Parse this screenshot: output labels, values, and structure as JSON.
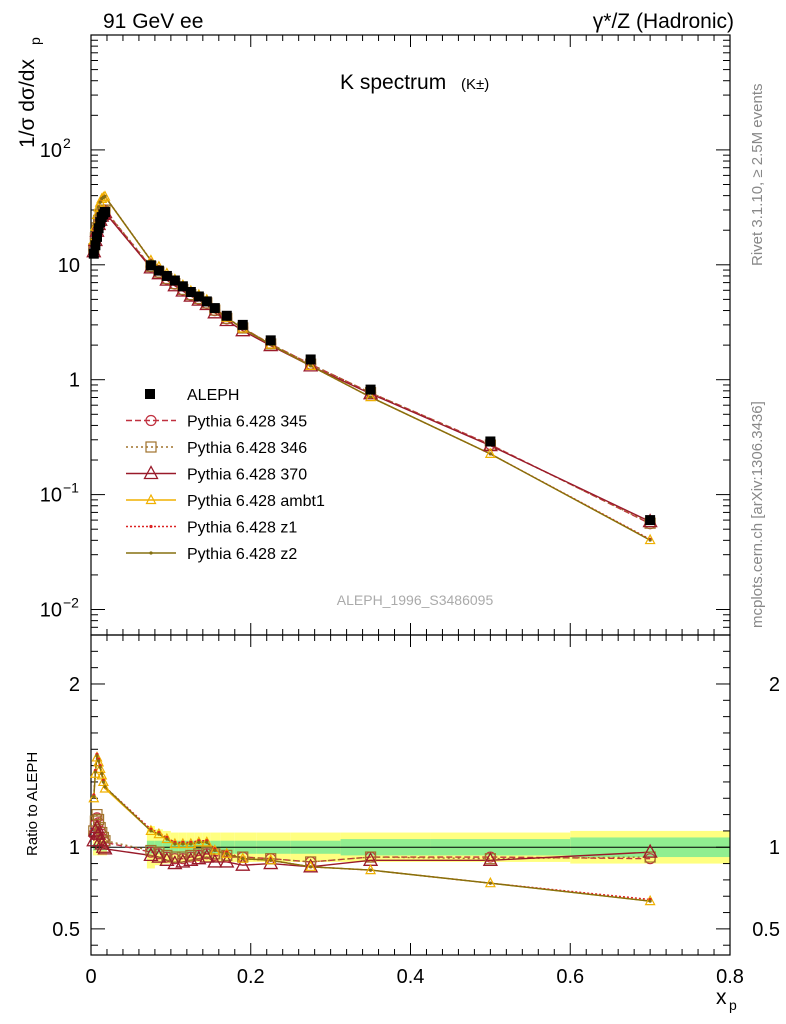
{
  "header": {
    "left": "91 GeV ee",
    "right": "γ*/Z (Hadronic)"
  },
  "side_labels": {
    "top": "Rivet 3.1.10, ≥ 2.5M events",
    "bottom": "mcplots.cern.ch [arXiv:1306.3436]"
  },
  "chart_data": {
    "type": "line",
    "title": "K spectrum",
    "title_sub": "(K±)",
    "watermark": "ALEPH_1996_S3486095",
    "xlabel": "x",
    "xlabel_sub": "p",
    "ylabel": "1/σ dσ/dx",
    "ylabel_sub": "p",
    "ratio_ylabel": "Ratio to ALEPH",
    "xlim": [
      0,
      0.8
    ],
    "ylim": [
      0.006,
      1000
    ],
    "yscale": "log",
    "ratio_ylim": [
      0.34,
      2.3
    ],
    "x_ticks": [
      "0",
      "0.2",
      "0.4",
      "0.6",
      "0.8"
    ],
    "x_tick_values": [
      0,
      0.2,
      0.4,
      0.6,
      0.8
    ],
    "y_ticks": [
      {
        "value": 0.01,
        "base": "10",
        "exp": "−2"
      },
      {
        "value": 0.1,
        "base": "10",
        "exp": "−1"
      },
      {
        "value": 1,
        "base": "1",
        "exp": ""
      },
      {
        "value": 10,
        "base": "10",
        "exp": ""
      },
      {
        "value": 100,
        "base": "10",
        "exp": "2"
      }
    ],
    "ratio_ticks": [
      "0.5",
      "1",
      "2"
    ],
    "ratio_tick_values": [
      0.5,
      1,
      2
    ],
    "x": [
      0.0035,
      0.0055,
      0.0075,
      0.0095,
      0.0115,
      0.0135,
      0.0155,
      0.0175,
      0.075,
      0.085,
      0.095,
      0.105,
      0.115,
      0.125,
      0.135,
      0.145,
      0.155,
      0.17,
      0.19,
      0.225,
      0.275,
      0.35,
      0.5,
      0.7
    ],
    "data": {
      "name": "ALEPH",
      "values": [
        12.5,
        14.8,
        17.5,
        20.8,
        23.5,
        26.0,
        27.5,
        28.8,
        9.9,
        8.9,
        8.0,
        7.3,
        6.5,
        5.8,
        5.3,
        4.8,
        4.2,
        3.6,
        3.0,
        2.2,
        1.5,
        0.82,
        0.29,
        0.06
      ],
      "band_stat": [
        0.02,
        0.02,
        0.02,
        0.02,
        0.02,
        0.02,
        0.02,
        0.02,
        0.04,
        0.04,
        0.04,
        0.04,
        0.04,
        0.04,
        0.04,
        0.04,
        0.04,
        0.04,
        0.04,
        0.04,
        0.04,
        0.05,
        0.05,
        0.06
      ],
      "band_total": [
        0.05,
        0.05,
        0.05,
        0.05,
        0.05,
        0.05,
        0.05,
        0.05,
        0.13,
        0.11,
        0.1,
        0.09,
        0.09,
        0.09,
        0.09,
        0.09,
        0.09,
        0.09,
        0.09,
        0.09,
        0.09,
        0.09,
        0.09,
        0.1
      ]
    },
    "series": [
      {
        "name": "Pythia 6.428 345",
        "color": "#c0303f",
        "dash": "6,3",
        "marker": "circle",
        "ratio": [
          1.08,
          1.14,
          1.18,
          1.15,
          1.1,
          1.08,
          1.05,
          1.03,
          0.97,
          0.96,
          0.94,
          0.93,
          0.93,
          0.94,
          0.95,
          0.96,
          0.95,
          0.94,
          0.94,
          0.93,
          0.91,
          0.94,
          0.94,
          0.93
        ]
      },
      {
        "name": "Pythia 6.428 346",
        "color": "#a0722b",
        "dash": "2,3",
        "marker": "square",
        "ratio": [
          1.1,
          1.16,
          1.2,
          1.17,
          1.12,
          1.09,
          1.06,
          1.04,
          0.98,
          0.97,
          0.95,
          0.94,
          0.94,
          0.95,
          0.96,
          0.97,
          0.96,
          0.95,
          0.94,
          0.93,
          0.91,
          0.94,
          0.93,
          0.94
        ]
      },
      {
        "name": "Pythia 6.428 370",
        "color": "#991a2a",
        "dash": "",
        "marker": "triangle",
        "ratio": [
          1.04,
          1.1,
          1.12,
          1.08,
          1.04,
          1.02,
          1.0,
          0.99,
          0.95,
          0.94,
          0.92,
          0.9,
          0.91,
          0.92,
          0.93,
          0.94,
          0.91,
          0.91,
          0.89,
          0.9,
          0.88,
          0.92,
          0.92,
          0.97
        ]
      },
      {
        "name": "Pythia 6.428 ambt1",
        "color": "#f0b000",
        "dash": "",
        "marker": "triangle-small",
        "ratio": [
          1.3,
          1.45,
          1.55,
          1.52,
          1.48,
          1.44,
          1.4,
          1.36,
          1.1,
          1.08,
          1.05,
          1.02,
          1.02,
          1.02,
          1.03,
          1.03,
          0.98,
          0.96,
          0.93,
          0.92,
          0.88,
          0.86,
          0.78,
          0.67
        ]
      },
      {
        "name": "Pythia 6.428 z1",
        "color": "#dd2222",
        "dash": "2,2",
        "marker": "dot",
        "ratio": [
          1.32,
          1.47,
          1.57,
          1.54,
          1.5,
          1.45,
          1.41,
          1.37,
          1.11,
          1.09,
          1.06,
          1.03,
          1.03,
          1.03,
          1.04,
          1.04,
          0.99,
          0.97,
          0.93,
          0.92,
          0.88,
          0.86,
          0.78,
          0.68
        ]
      },
      {
        "name": "Pythia 6.428 z2",
        "color": "#857010",
        "dash": "",
        "marker": "dot",
        "ratio": [
          1.31,
          1.46,
          1.56,
          1.53,
          1.49,
          1.45,
          1.4,
          1.37,
          1.1,
          1.08,
          1.05,
          1.02,
          1.02,
          1.02,
          1.03,
          1.03,
          0.98,
          0.96,
          0.93,
          0.92,
          0.88,
          0.86,
          0.78,
          0.67
        ]
      }
    ],
    "legend_position": "middle-left",
    "colors": {
      "stat_band": "#90ee90",
      "total_band": "#ffff80",
      "data_marker": "#000000"
    }
  }
}
